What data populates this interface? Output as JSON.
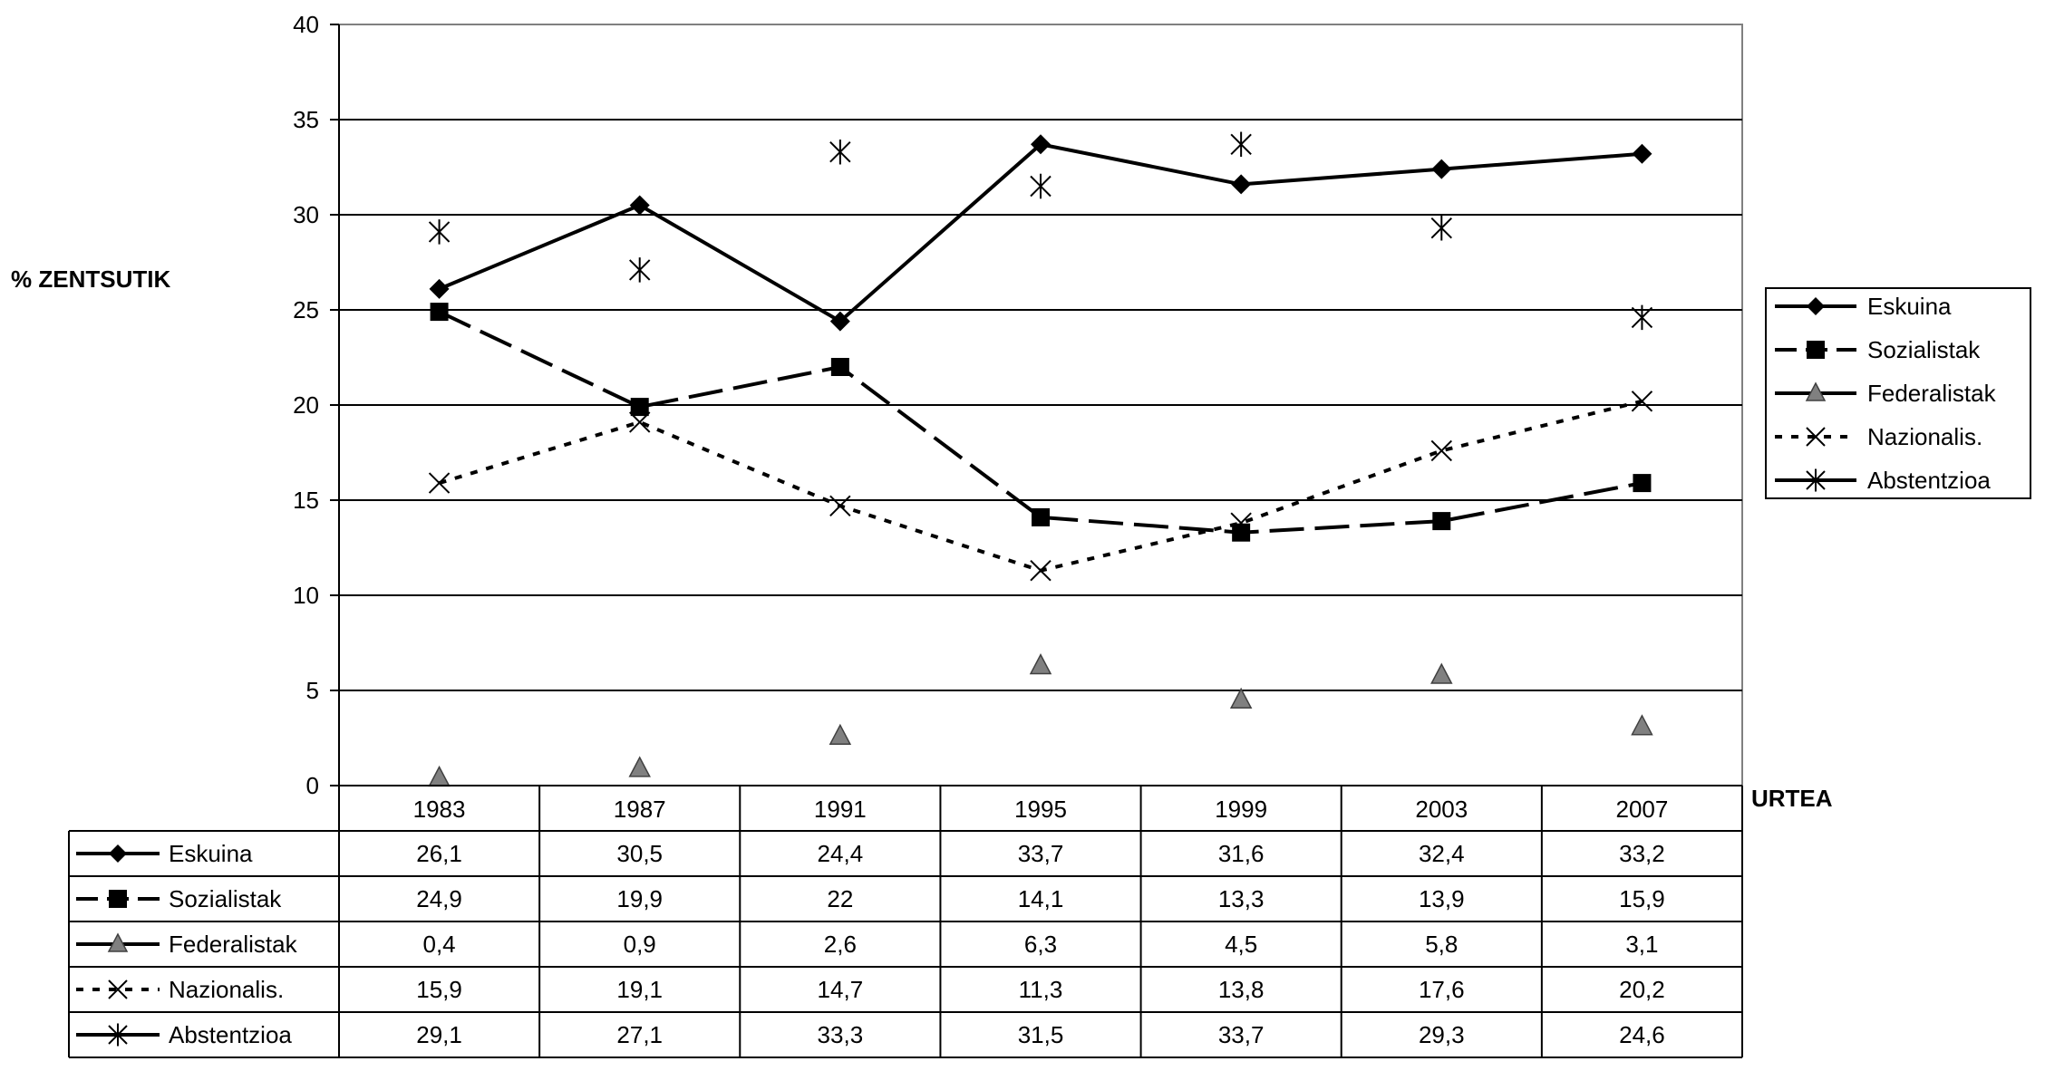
{
  "chart_data": {
    "type": "line",
    "ylabel": "% ZENTSUTIK",
    "xlabel": "URTEA",
    "ylim": [
      0,
      40
    ],
    "yticks": [
      0,
      5,
      10,
      15,
      20,
      25,
      30,
      35,
      40
    ],
    "grid": true,
    "legend_position": "right",
    "categories": [
      "1983",
      "1987",
      "1991",
      "1995",
      "1999",
      "2003",
      "2007"
    ],
    "series": [
      {
        "name": "Eskuina",
        "values": [
          26.1,
          30.5,
          24.4,
          33.7,
          31.6,
          32.4,
          33.2
        ],
        "labels": [
          "26,1",
          "30,5",
          "24,4",
          "33,7",
          "31,6",
          "32,4",
          "33,2"
        ],
        "line": "solid",
        "marker": "diamond",
        "color": "#000000"
      },
      {
        "name": "Sozialistak",
        "values": [
          24.9,
          19.9,
          22,
          14.1,
          13.3,
          13.9,
          15.9
        ],
        "labels": [
          "24,9",
          "19,9",
          "22",
          "14,1",
          "13,3",
          "13,9",
          "15,9"
        ],
        "line": "dashed",
        "marker": "square",
        "color": "#000000"
      },
      {
        "name": "Federalistak",
        "values": [
          0.4,
          0.9,
          2.6,
          6.3,
          4.5,
          5.8,
          3.1
        ],
        "labels": [
          "0,4",
          "0,9",
          "2,6",
          "6,3",
          "4,5",
          "5,8",
          "3,1"
        ],
        "line": "none",
        "marker": "triangle",
        "color": "#808080"
      },
      {
        "name": "Nazionalis.",
        "values": [
          15.9,
          19.1,
          14.7,
          11.3,
          13.8,
          17.6,
          20.2
        ],
        "labels": [
          "15,9",
          "19,1",
          "14,7",
          "11,3",
          "13,8",
          "17,6",
          "20,2"
        ],
        "line": "dotted",
        "marker": "x",
        "color": "#000000"
      },
      {
        "name": "Abstentzioa",
        "values": [
          29.1,
          27.1,
          33.3,
          31.5,
          33.7,
          29.3,
          24.6
        ],
        "labels": [
          "29,1",
          "27,1",
          "33,3",
          "31,5",
          "33,7",
          "29,3",
          "24,6"
        ],
        "line": "none",
        "marker": "star",
        "color": "#000000"
      }
    ]
  }
}
